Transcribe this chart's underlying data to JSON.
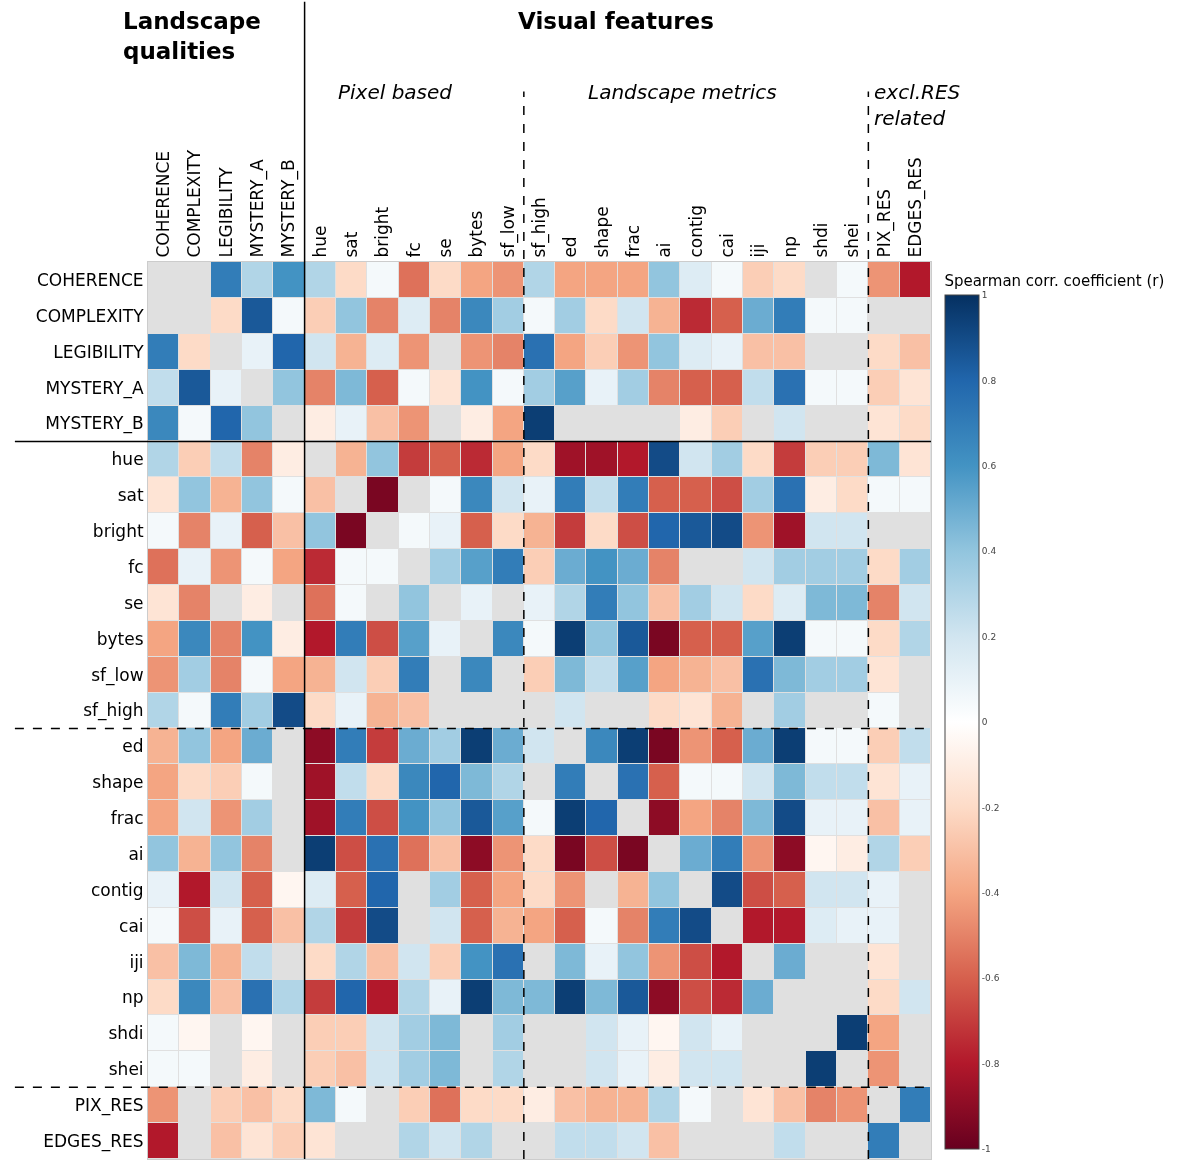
{
  "chart_data": {
    "type": "heatmap",
    "clabel": "Spearman corr. coefficient (r)",
    "annotations": [
      "Landscape qualities",
      "Visual features",
      "Pixel based",
      "Landscape metrics",
      "excl.RES related"
    ],
    "categories": [
      "COHERENCE",
      "COMPLEXITY",
      "LEGIBILITY",
      "MYSTERY_A",
      "MYSTERY_B",
      "hue",
      "sat",
      "bright",
      "fc",
      "se",
      "bytes",
      "sf_low",
      "sf_high",
      "ed",
      "shape",
      "frac",
      "ai",
      "contig",
      "cai",
      "iji",
      "np",
      "shdi",
      "shei",
      "PIX_RES",
      "EDGES_RES"
    ],
    "y_categories": [
      "COHERENCE",
      "COMPLEXITY",
      "LEGIBILITY",
      "MYSTERY_A",
      "MYSTERY_B",
      "hue",
      "sat",
      "bright",
      "fc",
      "se",
      "bytes",
      "sf_low",
      "sf_high",
      "ed",
      "shape",
      "frac",
      "ai",
      "contig",
      "cai",
      "iji",
      "np",
      "shdi",
      "shei",
      "PIX_RES",
      "EDGES_RES"
    ],
    "cells": [
      [
        null,
        null,
        0.7,
        0.3,
        0.6,
        0.3,
        -0.2,
        0.05,
        -0.55,
        -0.2,
        -0.4,
        -0.45,
        0.3,
        -0.4,
        -0.4,
        -0.4,
        0.4,
        0.15,
        0.05,
        -0.25,
        -0.2,
        null,
        0.05,
        -0.45,
        -0.8
      ],
      [
        null,
        null,
        -0.2,
        0.85,
        0.05,
        -0.25,
        0.4,
        -0.5,
        0.15,
        -0.5,
        0.65,
        0.35,
        0.05,
        0.35,
        -0.2,
        0.2,
        -0.35,
        -0.75,
        -0.6,
        0.5,
        0.7,
        0.05,
        0.05,
        null,
        null
      ],
      [
        0.7,
        -0.2,
        null,
        0.1,
        0.8,
        0.2,
        -0.35,
        0.15,
        -0.45,
        null,
        -0.45,
        -0.5,
        0.75,
        -0.4,
        -0.25,
        -0.45,
        0.4,
        0.15,
        0.1,
        -0.3,
        -0.3,
        null,
        null,
        -0.2,
        -0.3
      ],
      [
        0.25,
        0.85,
        0.1,
        null,
        0.4,
        -0.5,
        0.45,
        -0.6,
        0.05,
        -0.15,
        0.6,
        0.05,
        0.35,
        0.55,
        0.1,
        0.35,
        -0.5,
        -0.6,
        -0.6,
        0.25,
        0.75,
        0.05,
        0.05,
        -0.25,
        -0.15
      ],
      [
        0.65,
        0.05,
        0.8,
        0.4,
        null,
        -0.1,
        0.1,
        -0.3,
        -0.45,
        null,
        -0.1,
        -0.4,
        0.95,
        null,
        null,
        null,
        null,
        -0.1,
        -0.25,
        null,
        0.2,
        null,
        null,
        -0.15,
        -0.2
      ],
      [
        0.3,
        -0.25,
        0.25,
        -0.5,
        -0.1,
        null,
        -0.35,
        0.4,
        -0.7,
        -0.6,
        -0.75,
        -0.4,
        -0.2,
        -0.85,
        -0.85,
        -0.8,
        0.9,
        0.2,
        0.35,
        -0.2,
        -0.7,
        -0.25,
        -0.25,
        0.45,
        -0.15
      ],
      [
        -0.15,
        0.4,
        -0.35,
        0.4,
        0.05,
        -0.3,
        null,
        -0.95,
        null,
        0.05,
        0.65,
        0.2,
        0.1,
        0.7,
        0.25,
        0.7,
        -0.6,
        -0.6,
        -0.65,
        0.35,
        0.75,
        -0.1,
        -0.2,
        0.05,
        0.05
      ],
      [
        0.05,
        -0.5,
        0.1,
        -0.6,
        -0.3,
        0.4,
        -0.95,
        null,
        0.05,
        0.1,
        -0.6,
        -0.2,
        -0.35,
        -0.7,
        -0.2,
        -0.65,
        0.8,
        0.85,
        0.9,
        -0.45,
        -0.85,
        0.2,
        0.2,
        null,
        null
      ],
      [
        -0.55,
        0.1,
        -0.45,
        0.05,
        -0.4,
        -0.75,
        0.05,
        0.05,
        null,
        0.35,
        0.55,
        0.7,
        -0.25,
        0.5,
        0.6,
        0.5,
        -0.5,
        null,
        null,
        0.2,
        0.35,
        0.35,
        0.35,
        -0.2,
        0.35
      ],
      [
        -0.15,
        -0.5,
        null,
        -0.1,
        null,
        -0.55,
        0.05,
        null,
        0.4,
        null,
        0.1,
        null,
        0.1,
        0.3,
        0.7,
        0.4,
        -0.3,
        0.35,
        0.2,
        -0.2,
        0.15,
        0.45,
        0.45,
        -0.5,
        0.2
      ],
      [
        -0.4,
        0.65,
        -0.5,
        0.6,
        -0.1,
        -0.8,
        0.7,
        -0.65,
        0.55,
        0.1,
        null,
        0.65,
        0.05,
        0.95,
        0.4,
        0.85,
        -0.95,
        -0.6,
        -0.6,
        0.55,
        0.95,
        0.05,
        0.05,
        -0.2,
        0.3
      ],
      [
        -0.45,
        0.35,
        -0.5,
        0.05,
        -0.4,
        -0.35,
        0.2,
        -0.25,
        0.7,
        null,
        0.65,
        null,
        -0.25,
        0.45,
        0.25,
        0.55,
        -0.4,
        -0.35,
        -0.3,
        0.75,
        0.45,
        0.35,
        0.35,
        -0.15,
        null
      ],
      [
        0.3,
        0.05,
        0.7,
        0.35,
        0.9,
        -0.2,
        0.1,
        -0.35,
        -0.3,
        null,
        null,
        null,
        null,
        0.2,
        null,
        null,
        -0.2,
        -0.15,
        -0.35,
        null,
        0.35,
        null,
        null,
        0.05,
        null
      ],
      [
        -0.35,
        0.4,
        -0.4,
        0.5,
        null,
        -0.9,
        0.7,
        -0.7,
        0.5,
        0.35,
        0.95,
        0.5,
        0.2,
        null,
        0.65,
        0.95,
        -0.95,
        -0.45,
        -0.6,
        0.5,
        0.95,
        0.05,
        0.05,
        -0.25,
        0.25
      ],
      [
        -0.4,
        -0.2,
        -0.25,
        0.05,
        null,
        -0.85,
        0.25,
        -0.2,
        0.65,
        0.8,
        0.45,
        0.3,
        null,
        0.7,
        null,
        0.75,
        -0.6,
        0.05,
        0.05,
        0.2,
        0.45,
        0.25,
        0.25,
        -0.15,
        0.1
      ],
      [
        -0.4,
        0.2,
        -0.45,
        0.35,
        null,
        -0.85,
        0.7,
        -0.65,
        0.6,
        0.4,
        0.85,
        0.55,
        0.05,
        0.95,
        0.8,
        null,
        -0.9,
        -0.4,
        -0.5,
        0.45,
        0.9,
        0.1,
        0.1,
        -0.3,
        0.1
      ],
      [
        0.4,
        -0.35,
        0.4,
        -0.5,
        null,
        0.95,
        -0.65,
        0.75,
        -0.55,
        -0.3,
        -0.9,
        -0.45,
        -0.2,
        -0.95,
        -0.65,
        -0.95,
        null,
        0.5,
        0.7,
        -0.45,
        -0.9,
        -0.05,
        -0.1,
        0.3,
        -0.25
      ],
      [
        0.1,
        -0.8,
        0.2,
        -0.6,
        -0.05,
        0.15,
        -0.6,
        0.8,
        null,
        0.35,
        -0.6,
        -0.4,
        -0.2,
        -0.45,
        null,
        -0.35,
        0.4,
        null,
        0.9,
        -0.65,
        -0.6,
        0.2,
        0.2,
        0.1,
        null
      ],
      [
        0.05,
        -0.65,
        0.1,
        -0.6,
        -0.3,
        0.3,
        -0.7,
        0.9,
        null,
        0.2,
        -0.6,
        -0.35,
        -0.4,
        -0.6,
        0.05,
        -0.5,
        0.7,
        0.9,
        null,
        -0.8,
        -0.8,
        0.15,
        0.1,
        0.1,
        null
      ],
      [
        -0.3,
        0.45,
        -0.35,
        0.25,
        null,
        -0.2,
        0.3,
        -0.3,
        0.2,
        -0.25,
        0.6,
        0.75,
        null,
        0.45,
        0.1,
        0.4,
        -0.45,
        -0.65,
        -0.8,
        null,
        0.5,
        null,
        null,
        -0.15,
        null
      ],
      [
        -0.2,
        0.65,
        -0.3,
        0.75,
        0.3,
        -0.7,
        0.8,
        -0.8,
        0.3,
        0.1,
        0.95,
        0.45,
        0.45,
        0.95,
        0.45,
        0.85,
        -0.9,
        -0.65,
        -0.75,
        0.5,
        null,
        null,
        null,
        -0.2,
        0.2
      ],
      [
        0.05,
        -0.05,
        null,
        -0.05,
        null,
        -0.25,
        -0.25,
        0.2,
        0.35,
        0.45,
        null,
        0.35,
        null,
        null,
        0.2,
        0.1,
        -0.05,
        0.2,
        0.1,
        null,
        null,
        null,
        0.95,
        -0.4,
        null
      ],
      [
        0.05,
        0.05,
        null,
        -0.1,
        null,
        -0.25,
        -0.3,
        0.2,
        0.35,
        0.45,
        null,
        0.3,
        null,
        null,
        0.2,
        0.1,
        -0.1,
        0.2,
        0.2,
        null,
        null,
        0.95,
        null,
        -0.45,
        null
      ],
      [
        -0.45,
        null,
        -0.25,
        -0.3,
        -0.2,
        0.45,
        0.05,
        null,
        -0.25,
        -0.55,
        -0.2,
        -0.2,
        -0.1,
        -0.3,
        -0.35,
        -0.35,
        0.3,
        0.05,
        null,
        -0.15,
        -0.3,
        -0.5,
        -0.45,
        null,
        0.7
      ],
      [
        -0.8,
        null,
        -0.3,
        -0.15,
        -0.25,
        -0.15,
        null,
        null,
        0.3,
        0.2,
        0.3,
        null,
        null,
        0.25,
        0.25,
        0.2,
        -0.3,
        null,
        null,
        null,
        0.25,
        null,
        null,
        0.7,
        null
      ]
    ],
    "clim": [
      -1,
      1
    ],
    "cticks": [
      -1,
      -0.8,
      -0.6,
      -0.4,
      -0.2,
      0,
      0.2,
      0.4,
      0.6,
      0.8,
      1
    ],
    "grid": true
  }
}
